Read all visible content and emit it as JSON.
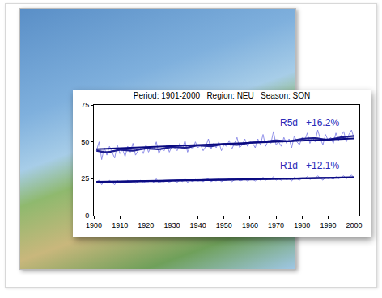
{
  "chart_data": {
    "type": "line",
    "title": "Period: 1901-2000   Region: NEU   Season: SON",
    "xlim": [
      1900,
      2002
    ],
    "xticks": [
      1900,
      1910,
      1920,
      1930,
      1940,
      1950,
      1960,
      1970,
      1980,
      1990,
      2000
    ],
    "ylim": [
      0,
      75
    ],
    "yticks": [
      0,
      25,
      50,
      75
    ],
    "grid": false,
    "x": [
      1901,
      1902,
      1903,
      1904,
      1905,
      1906,
      1907,
      1908,
      1909,
      1910,
      1911,
      1912,
      1913,
      1914,
      1915,
      1916,
      1917,
      1918,
      1919,
      1920,
      1921,
      1922,
      1923,
      1924,
      1925,
      1926,
      1927,
      1928,
      1929,
      1930,
      1931,
      1932,
      1933,
      1934,
      1935,
      1936,
      1937,
      1938,
      1939,
      1940,
      1941,
      1942,
      1943,
      1944,
      1945,
      1946,
      1947,
      1948,
      1949,
      1950,
      1951,
      1952,
      1953,
      1954,
      1955,
      1956,
      1957,
      1958,
      1959,
      1960,
      1961,
      1962,
      1963,
      1964,
      1965,
      1966,
      1967,
      1968,
      1969,
      1970,
      1971,
      1972,
      1973,
      1974,
      1975,
      1976,
      1977,
      1978,
      1979,
      1980,
      1981,
      1982,
      1983,
      1984,
      1985,
      1986,
      1987,
      1988,
      1989,
      1990,
      1991,
      1992,
      1993,
      1994,
      1995,
      1996,
      1997,
      1998,
      1999,
      2000
    ],
    "series": [
      {
        "type": "line",
        "line_style": "thin",
        "color": "#8585e6",
        "values": [
          44,
          50,
          38,
          46,
          41,
          47,
          43,
          39,
          48,
          42,
          45,
          40,
          47,
          43,
          49,
          41,
          44,
          46,
          42,
          48,
          43,
          47,
          45,
          50,
          42,
          46,
          44,
          48,
          43,
          47,
          46,
          44,
          49,
          45,
          51,
          43,
          47,
          45,
          50,
          46,
          48,
          44,
          47,
          52,
          45,
          49,
          46,
          50,
          44,
          48,
          47,
          51,
          45,
          49,
          53,
          46,
          48,
          52,
          47,
          50,
          49,
          46,
          52,
          48,
          55,
          47,
          51,
          49,
          57,
          48,
          50,
          47,
          53,
          49,
          52,
          46,
          54,
          50,
          48,
          53,
          51,
          56,
          49,
          53,
          50,
          58,
          52,
          48,
          55,
          51,
          53,
          49,
          56,
          51,
          54,
          57,
          50,
          55,
          58,
          52
        ]
      },
      {
        "type": "line",
        "line_style": "thin",
        "color": "#8585e6",
        "values": [
          23,
          24,
          21,
          23.5,
          22,
          24,
          22.5,
          21,
          24,
          22,
          23,
          22,
          24,
          22.5,
          23.5,
          22,
          23,
          24,
          22.5,
          23,
          23,
          24,
          22.5,
          25,
          22,
          23.5,
          23,
          24,
          22.5,
          24,
          23.5,
          22.5,
          24.5,
          23,
          25,
          22.5,
          24,
          23,
          24.5,
          23.5,
          24,
          23,
          24.5,
          25,
          23,
          24,
          23.5,
          25,
          23,
          24,
          24,
          25,
          23,
          24.5,
          25.5,
          23.5,
          24,
          25,
          23.5,
          24.5,
          24.5,
          23.5,
          25,
          24,
          26,
          24,
          25,
          24.5,
          26.5,
          24,
          25,
          24,
          25.5,
          24.5,
          25,
          23.5,
          26,
          25,
          24,
          25.5,
          25,
          26.5,
          24.5,
          25.5,
          25,
          27,
          25.5,
          24,
          26,
          25,
          25.5,
          24.5,
          26.5,
          25,
          26,
          27,
          25,
          26,
          27.5,
          25.5
        ]
      },
      {
        "type": "line",
        "line_style": "smooth",
        "color": "#1c1c8f",
        "x": [
          1901,
          1905,
          1910,
          1915,
          1920,
          1925,
          1930,
          1935,
          1940,
          1945,
          1950,
          1955,
          1960,
          1965,
          1970,
          1975,
          1980,
          1985,
          1990,
          1995,
          2000
        ],
        "values": [
          44,
          43,
          44.5,
          44,
          45.5,
          45,
          46.5,
          46,
          47.5,
          47,
          48.5,
          48,
          49.5,
          50,
          51,
          50.5,
          52,
          52.5,
          51.5,
          53,
          54
        ]
      },
      {
        "type": "line",
        "line_style": "smooth",
        "color": "#1c1c8f",
        "x": [
          1901,
          1905,
          1910,
          1915,
          1920,
          1925,
          1930,
          1935,
          1940,
          1945,
          1950,
          1955,
          1960,
          1965,
          1970,
          1975,
          1980,
          1985,
          1990,
          1995,
          2000
        ],
        "values": [
          23,
          22.8,
          23,
          23.2,
          23.4,
          23.5,
          23.8,
          24,
          24,
          24.2,
          24.3,
          24.5,
          24.6,
          24.8,
          25,
          25,
          25.2,
          25.4,
          25.6,
          25.8,
          26
        ]
      },
      {
        "type": "line",
        "line_style": "solid",
        "color": "#0a0a80",
        "x": [
          1901,
          2000
        ],
        "values": [
          45,
          52.3
        ]
      },
      {
        "type": "line",
        "line_style": "solid",
        "color": "#0a0a80",
        "x": [
          1901,
          2000
        ],
        "values": [
          23,
          25.8
        ]
      }
    ],
    "annotations": [
      {
        "text": "R5d   +16.2%",
        "x": 1971,
        "y": 63,
        "color": "#2a2ab8"
      },
      {
        "text": "R1d   +12.1%",
        "x": 1971,
        "y": 34,
        "color": "#2a2ab8"
      }
    ]
  }
}
